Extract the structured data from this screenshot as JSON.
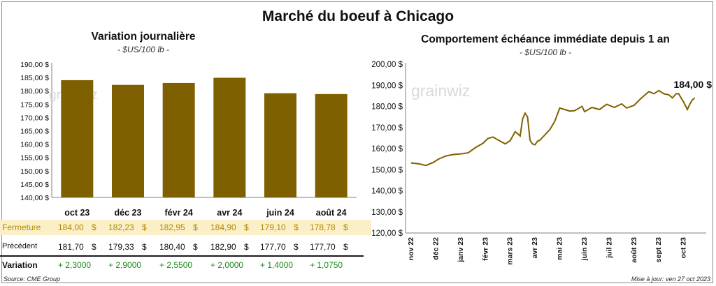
{
  "main_title": "Marché du boeuf à Chicago",
  "left_chart": {
    "title": "Variation  journalière",
    "unit": "- $US/100 lb -",
    "watermark": "grainwiz"
  },
  "right_chart": {
    "title": "Comportement  échéance immédiate depuis 1 an",
    "unit": "- $US/100 lb -",
    "watermark": "grainwiz",
    "last_label": "184,00 $"
  },
  "table": {
    "rows": [
      {
        "label": "Fermeture",
        "values": [
          "184,00",
          "182,23",
          "182,95",
          "184,90",
          "179,10",
          "178,78"
        ],
        "suffix": "$"
      },
      {
        "label": "Précédent",
        "values": [
          "181,70",
          "179,33",
          "180,40",
          "182,90",
          "177,70",
          "177,70"
        ],
        "suffix": "$"
      },
      {
        "label": "Variation",
        "values": [
          "+ 2,3000",
          "+ 2,9000",
          "+ 2,5500",
          "+ 2,0000",
          "+ 1,4000",
          "+ 1,0750"
        ],
        "suffix": ""
      }
    ]
  },
  "footer": {
    "source": "Source: CME Group",
    "update": "Mise à jour: ven 27 oct 2023"
  },
  "colors": {
    "bar": "#7f6000",
    "line": "#806000",
    "highlight_row": "#fbefc8",
    "highlight_text": "#b08a00",
    "positive": "#1a8a1a"
  },
  "chart_data": [
    {
      "type": "bar",
      "categories": [
        "oct 23",
        "déc 23",
        "févr 24",
        "avr 24",
        "juin 24",
        "août 24"
      ],
      "values": [
        184.0,
        182.23,
        182.95,
        184.9,
        179.1,
        178.78
      ],
      "ylim": [
        140,
        190
      ],
      "ytick_step": 5,
      "ytick_labels": [
        "140,00 $",
        "145,00 $",
        "150,00 $",
        "155,00 $",
        "160,00 $",
        "165,00 $",
        "170,00 $",
        "175,00 $",
        "180,00 $",
        "185,00 $",
        "190,00 $"
      ],
      "grid": false
    },
    {
      "type": "line",
      "x_labels": [
        "nov 22",
        "déc 22",
        "janv 23",
        "févr 23",
        "mars 23",
        "avr 23",
        "mai 23",
        "juin 23",
        "juil 23",
        "août 23",
        "sept 23",
        "oct 23"
      ],
      "ylim": [
        120,
        200
      ],
      "ytick_step": 10,
      "ytick_labels": [
        "120,00 $",
        "130,00 $",
        "140,00 $",
        "150,00 $",
        "160,00 $",
        "170,00 $",
        "180,00 $",
        "190,00 $",
        "200,00 $"
      ],
      "grid": false,
      "x": [
        0,
        0.3,
        0.6,
        0.9,
        1.1,
        1.4,
        1.7,
        2.0,
        2.3,
        2.6,
        2.9,
        3.1,
        3.3,
        3.6,
        3.8,
        4.0,
        4.2,
        4.4,
        4.5,
        4.6,
        4.7,
        4.8,
        4.9,
        5.0,
        5.1,
        5.2,
        5.4,
        5.6,
        5.8,
        6.0,
        6.2,
        6.4,
        6.6,
        6.9,
        7.0,
        7.3,
        7.6,
        7.9,
        8.2,
        8.5,
        8.7,
        9.0,
        9.3,
        9.6,
        9.8,
        10.0,
        10.2,
        10.4,
        10.55,
        10.7,
        10.8,
        10.9,
        11.0,
        11.15,
        11.25,
        11.35,
        11.45
      ],
      "values": [
        153.2,
        152.8,
        152.0,
        153.5,
        155.0,
        156.5,
        157.2,
        157.5,
        158.0,
        160.5,
        162.5,
        164.8,
        165.5,
        163.5,
        162.2,
        163.8,
        168.0,
        166.0,
        174.0,
        176.8,
        175.0,
        164.0,
        162.2,
        161.8,
        163.5,
        164.0,
        166.5,
        169.0,
        173.0,
        179.2,
        178.5,
        177.8,
        178.0,
        180.0,
        177.5,
        179.5,
        178.5,
        181.0,
        179.5,
        181.2,
        179.2,
        180.5,
        184.0,
        187.0,
        186.0,
        187.5,
        186.0,
        185.5,
        184.0,
        186.0,
        186.0,
        184.0,
        182.0,
        178.5,
        181.0,
        183.0,
        184.0
      ],
      "last_value": 184.0
    }
  ]
}
